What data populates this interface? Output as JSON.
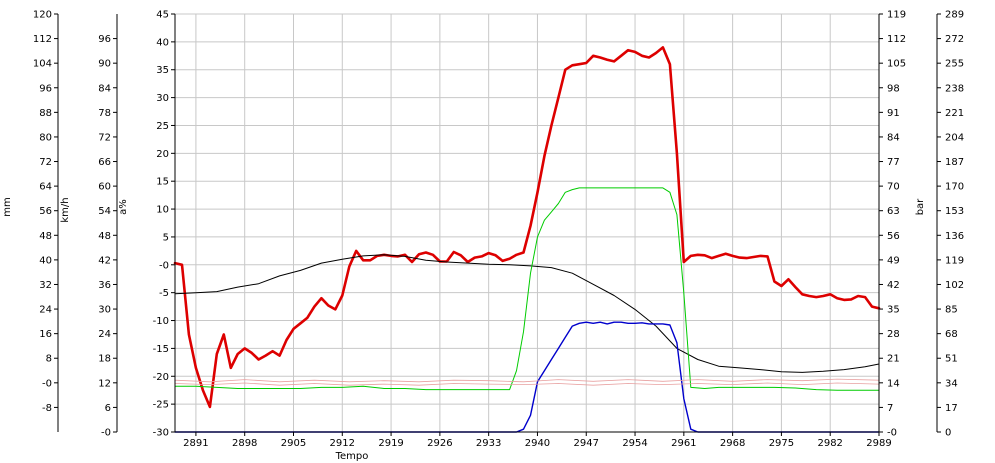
{
  "chart_data": {
    "type": "line",
    "xlabel": "Tempo",
    "x_ticks": [
      "2891",
      "2898",
      "2905",
      "2912",
      "2919",
      "2926",
      "2933",
      "2940",
      "2947",
      "2954",
      "2961",
      "2968",
      "2975",
      "2982",
      "2989"
    ],
    "xlim": [
      2888,
      2989
    ],
    "grid": true,
    "axes": [
      {
        "id": "mm",
        "label": "mm",
        "side": "left",
        "range": [
          -16,
          120
        ],
        "ticks": [
          "-8",
          "-0",
          "8",
          "16",
          "24",
          "32",
          "40",
          "48",
          "56",
          "64",
          "72",
          "80",
          "88",
          "96",
          "104",
          "112",
          "120"
        ]
      },
      {
        "id": "kmh",
        "label": "km/h",
        "side": "left",
        "range": [
          0,
          102
        ],
        "ticks": [
          "-0",
          "6",
          "12",
          "18",
          "24",
          "30",
          "36",
          "42",
          "48",
          "54",
          "60",
          "66",
          "72",
          "78",
          "84",
          "90",
          "96"
        ]
      },
      {
        "id": "pct",
        "label": "a%",
        "side": "left",
        "range": [
          -30,
          45
        ],
        "ticks": [
          "-30",
          "-25",
          "-20",
          "-15",
          "-10",
          "-5",
          "-0",
          "5",
          "10",
          "15",
          "20",
          "25",
          "30",
          "35",
          "40",
          "45"
        ]
      },
      {
        "id": "bar",
        "label": "bar",
        "side": "right",
        "range": [
          0,
          119
        ],
        "ticks": [
          "-0",
          "7",
          "14",
          "21",
          "28",
          "35",
          "42",
          "49",
          "56",
          "63",
          "70",
          "77",
          "84",
          "91",
          "98",
          "105",
          "112",
          "119"
        ]
      },
      {
        "id": "bar2",
        "label": "",
        "side": "right",
        "range": [
          0,
          289
        ],
        "ticks": [
          "0",
          "17",
          "34",
          "51",
          "68",
          "85",
          "102",
          "119",
          "136",
          "153",
          "170",
          "187",
          "204",
          "221",
          "238",
          "255",
          "272",
          "289"
        ]
      }
    ],
    "series": [
      {
        "color": "#dd0000",
        "width": 2.6,
        "axis": "pct",
        "x": [
          2888,
          2889,
          2890,
          2891,
          2892,
          2893,
          2894,
          2895,
          2896,
          2897,
          2898,
          2899,
          2900,
          2901,
          2902,
          2903,
          2904,
          2905,
          2906,
          2907,
          2908,
          2909,
          2910,
          2911,
          2912,
          2913,
          2914,
          2915,
          2916,
          2917,
          2918,
          2919,
          2920,
          2921,
          2922,
          2923,
          2924,
          2925,
          2926,
          2927,
          2928,
          2929,
          2930,
          2931,
          2932,
          2933,
          2934,
          2935,
          2936,
          2937,
          2938,
          2939,
          2940,
          2941,
          2942,
          2943,
          2944,
          2945,
          2946,
          2947,
          2948,
          2949,
          2950,
          2951,
          2952,
          2953,
          2954,
          2955,
          2956,
          2957,
          2958,
          2959,
          2960,
          2961,
          2962,
          2963,
          2964,
          2965,
          2966,
          2967,
          2968,
          2969,
          2970,
          2971,
          2972,
          2973,
          2974,
          2975,
          2976,
          2977,
          2978,
          2979,
          2980,
          2981,
          2982,
          2983,
          2984,
          2985,
          2986,
          2987,
          2988,
          2989
        ],
        "y": [
          0.3,
          0,
          -12.5,
          -18.5,
          -22.5,
          -25.5,
          -16,
          -12.5,
          -18.5,
          -16,
          -15,
          -15.8,
          -17,
          -16.3,
          -15.5,
          -16.3,
          -13.5,
          -11.5,
          -10.5,
          -9.5,
          -7.5,
          -6,
          -7.3,
          -8,
          -5.5,
          -0.3,
          2.5,
          0.8,
          0.8,
          1.6,
          1.8,
          1.6,
          1.5,
          1.8,
          0.5,
          1.9,
          2.2,
          1.8,
          0.6,
          0.6,
          2.3,
          1.7,
          0.5,
          1.3,
          1.5,
          2.1,
          1.7,
          0.7,
          1.1,
          1.8,
          2.2,
          7,
          13,
          19.5,
          25,
          30,
          35,
          35.8,
          36,
          36.2,
          37.5,
          37.2,
          36.8,
          36.5,
          37.5,
          38.5,
          38.2,
          37.5,
          37.2,
          38,
          39,
          36,
          20,
          0.5,
          1.6,
          1.8,
          1.7,
          1.2,
          1.6,
          2,
          1.6,
          1.3,
          1.2,
          1.4,
          1.6,
          1.5,
          -3,
          -3.8,
          -2.6,
          -4,
          -5.3,
          -5.6,
          -5.8,
          -5.6,
          -5.3,
          -6,
          -6.3,
          -6.2,
          -5.6,
          -5.8,
          -7.5,
          -7.8
        ]
      },
      {
        "color": "#000000",
        "width": 1,
        "axis": "pct",
        "x": [
          2888,
          2891,
          2894,
          2897,
          2900,
          2903,
          2906,
          2909,
          2912,
          2915,
          2918,
          2921,
          2924,
          2927,
          2930,
          2933,
          2936,
          2939,
          2942,
          2945,
          2948,
          2951,
          2954,
          2957,
          2960,
          2963,
          2966,
          2969,
          2972,
          2975,
          2978,
          2981,
          2984,
          2987,
          2989
        ],
        "y": [
          -5.2,
          -5,
          -4.8,
          -4,
          -3.4,
          -2,
          -1,
          0.3,
          1,
          1.6,
          1.8,
          1.5,
          0.8,
          0.5,
          0.3,
          0.1,
          0,
          -0.2,
          -0.5,
          -1.5,
          -3.5,
          -5.5,
          -8,
          -11,
          -15,
          -17,
          -18.2,
          -18.5,
          -18.8,
          -19.2,
          -19.3,
          -19.1,
          -18.8,
          -18.3,
          -17.8
        ]
      },
      {
        "color": "#00cc00",
        "width": 1,
        "axis": "pct",
        "x": [
          2888,
          2891,
          2894,
          2897,
          2900,
          2903,
          2906,
          2909,
          2912,
          2915,
          2918,
          2921,
          2924,
          2927,
          2930,
          2933,
          2936,
          2937,
          2938,
          2939,
          2940,
          2941,
          2942,
          2943,
          2944,
          2945,
          2946,
          2947,
          2950,
          2953,
          2956,
          2958,
          2959,
          2960,
          2961,
          2962,
          2964,
          2966,
          2968,
          2971,
          2974,
          2977,
          2980,
          2983,
          2986,
          2989
        ],
        "y": [
          -21.8,
          -21.8,
          -22,
          -22.2,
          -22.2,
          -22.2,
          -22.2,
          -22,
          -22,
          -21.8,
          -22.2,
          -22.2,
          -22.4,
          -22.4,
          -22.4,
          -22.4,
          -22.4,
          -19,
          -12,
          -1.5,
          5,
          8,
          9.5,
          11,
          13,
          13.5,
          13.8,
          13.8,
          13.8,
          13.8,
          13.8,
          13.8,
          13,
          9,
          -5,
          -22,
          -22.2,
          -22,
          -22,
          -22,
          -22,
          -22.1,
          -22.4,
          -22.5,
          -22.5,
          -22.5
        ]
      },
      {
        "color": "#0000cc",
        "width": 1.4,
        "axis": "pct",
        "x": [
          2888,
          2937,
          2938,
          2939,
          2940,
          2941,
          2942,
          2943,
          2944,
          2945,
          2946,
          2947,
          2948,
          2949,
          2950,
          2951,
          2952,
          2953,
          2954,
          2955,
          2956,
          2957,
          2958,
          2959,
          2960,
          2961,
          2962,
          2963,
          2964,
          2989
        ],
        "y": [
          -30,
          -30,
          -29.5,
          -27,
          -21,
          -19,
          -17,
          -15,
          -13,
          -11,
          -10.5,
          -10.3,
          -10.5,
          -10.3,
          -10.6,
          -10.3,
          -10.3,
          -10.5,
          -10.5,
          -10.4,
          -10.6,
          -10.6,
          -10.6,
          -10.8,
          -14,
          -24,
          -29.5,
          -30,
          -30,
          -30
        ]
      },
      {
        "color": "#e8a0a0",
        "width": 0.8,
        "axis": "pct",
        "x": [
          2888,
          2893,
          2898,
          2903,
          2908,
          2913,
          2918,
          2923,
          2928,
          2933,
          2938,
          2943,
          2948,
          2953,
          2958,
          2963,
          2968,
          2973,
          2978,
          2983,
          2989
        ],
        "y": [
          -20.7,
          -21,
          -20.6,
          -21,
          -20.7,
          -21,
          -20.8,
          -21,
          -20.7,
          -20.8,
          -21,
          -20.6,
          -20.9,
          -20.6,
          -20.9,
          -20.6,
          -20.9,
          -20.6,
          -20.8,
          -20.5,
          -20.7
        ]
      },
      {
        "color": "#e8a0a0",
        "width": 0.8,
        "axis": "pct",
        "x": [
          2888,
          2893,
          2898,
          2903,
          2908,
          2913,
          2918,
          2923,
          2928,
          2933,
          2938,
          2943,
          2948,
          2953,
          2958,
          2963,
          2968,
          2973,
          2978,
          2983,
          2989
        ],
        "y": [
          -21.3,
          -21.5,
          -21.2,
          -21.6,
          -21.3,
          -21.6,
          -21.4,
          -21.6,
          -21.3,
          -21.4,
          -21.5,
          -21.3,
          -21.6,
          -21.3,
          -21.5,
          -21.3,
          -21.5,
          -21.2,
          -21.5,
          -21.2,
          -21.4
        ]
      }
    ]
  }
}
